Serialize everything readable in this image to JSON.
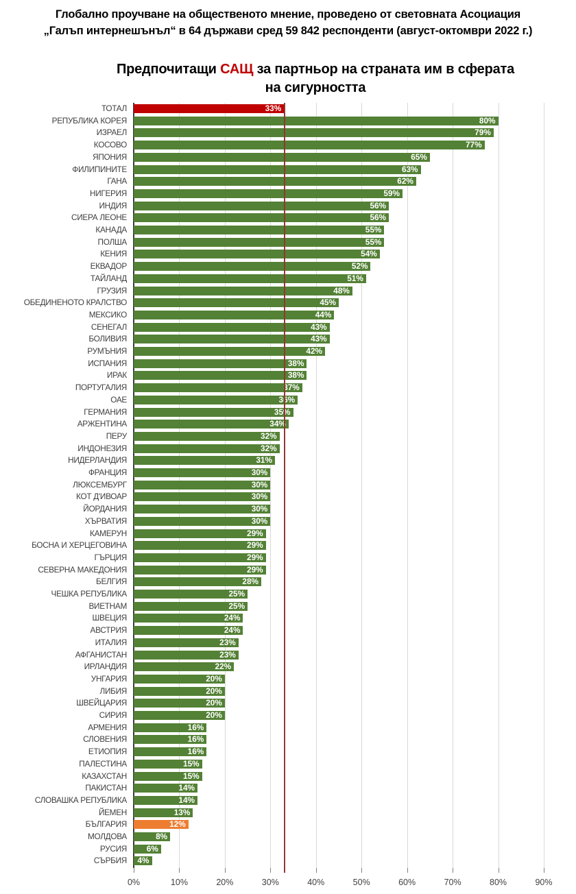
{
  "header": {
    "line1": "Глобално проучване на общественото мнение, проведено от световната Асоциация",
    "line2": "„Галъп интернешънъл“ в 64 държави сред 59 842 респонденти (август-октомври 2022 г.)"
  },
  "title": {
    "prefix": "Предпочитащи ",
    "highlight": "САЩ",
    "suffix": " за партньор на страната им в сферата",
    "line2": "на сигурността",
    "highlight_color": "#c00000"
  },
  "chart_data": {
    "type": "bar",
    "orientation": "horizontal",
    "categories": [
      "ТОТАЛ",
      "РЕПУБЛИКА КОРЕЯ",
      "ИЗРАЕЛ",
      "КОСОВО",
      "ЯПОНИЯ",
      "ФИЛИПИНИТЕ",
      "ГАНА",
      "НИГЕРИЯ",
      "ИНДИЯ",
      "СИЕРА ЛЕОНЕ",
      "КАНАДА",
      "ПОЛША",
      "КЕНИЯ",
      "ЕКВАДОР",
      "ТАЙЛАНД",
      "ГРУЗИЯ",
      "ОБЕДИНЕНОТО КРАЛСТВО",
      "МЕКСИКО",
      "СЕНЕГАЛ",
      "БОЛИВИЯ",
      "РУМЪНИЯ",
      "ИСПАНИЯ",
      "ИРАК",
      "ПОРТУГАЛИЯ",
      "ОАЕ",
      "ГЕРМАНИЯ",
      "АРЖЕНТИНА",
      "ПЕРУ",
      "ИНДОНЕЗИЯ",
      "НИДЕРЛАНДИЯ",
      "ФРАНЦИЯ",
      "ЛЮКСЕМБУРГ",
      "КОТ Д'ИВОАР",
      "ЙОРДАНИЯ",
      "ХЪРВАТИЯ",
      "КАМЕРУН",
      "БОСНА И ХЕРЦЕГОВИНА",
      "ГЪРЦИЯ",
      "СЕВЕРНА МАКЕДОНИЯ",
      "БЕЛГИЯ",
      "ЧЕШКА РЕПУБЛИКА",
      "ВИЕТНАМ",
      "ШВЕЦИЯ",
      "АВСТРИЯ",
      "ИТАЛИЯ",
      "АФГАНИСТАН",
      "ИРЛАНДИЯ",
      "УНГАРИЯ",
      "ЛИБИЯ",
      "ШВЕЙЦАРИЯ",
      "СИРИЯ",
      "АРМЕНИЯ",
      "СЛОВЕНИЯ",
      "ЕТИОПИЯ",
      "ПАЛЕСТИНА",
      "КАЗАХСТАН",
      "ПАКИСТАН",
      "СЛОВАШКА РЕПУБЛИКА",
      "ЙЕМЕН",
      "БЪЛГАРИЯ",
      "МОЛДОВА",
      "РУСИЯ",
      "СЪРБИЯ"
    ],
    "values": [
      33,
      80,
      79,
      77,
      65,
      63,
      62,
      59,
      56,
      56,
      55,
      55,
      54,
      52,
      51,
      48,
      45,
      44,
      43,
      43,
      42,
      38,
      38,
      37,
      36,
      35,
      34,
      32,
      32,
      31,
      30,
      30,
      30,
      30,
      30,
      29,
      29,
      29,
      29,
      28,
      25,
      25,
      24,
      24,
      23,
      23,
      22,
      20,
      20,
      20,
      20,
      16,
      16,
      16,
      15,
      15,
      14,
      14,
      13,
      12,
      8,
      6,
      4
    ],
    "value_suffix": "%",
    "xticks": [
      "0%",
      "10%",
      "20%",
      "30%",
      "40%",
      "50%",
      "60%",
      "70%",
      "80%",
      "90%"
    ],
    "xlim": [
      0,
      91
    ],
    "grid": true,
    "legend": "none",
    "reference_line": {
      "value": 33,
      "color": "#943634"
    },
    "colors": {
      "default_bar": "#538135",
      "total_bar": "#c00000",
      "bulgaria_bar": "#ed7d31",
      "gridline": "#d9d9d9",
      "axis_line": "#3b3b3b",
      "tick": "#7f7f7f",
      "category_text": "#404040",
      "value_text": "#ffffff"
    },
    "bar_color_overrides": {
      "0": "#c00000",
      "59": "#ed7d31"
    }
  }
}
